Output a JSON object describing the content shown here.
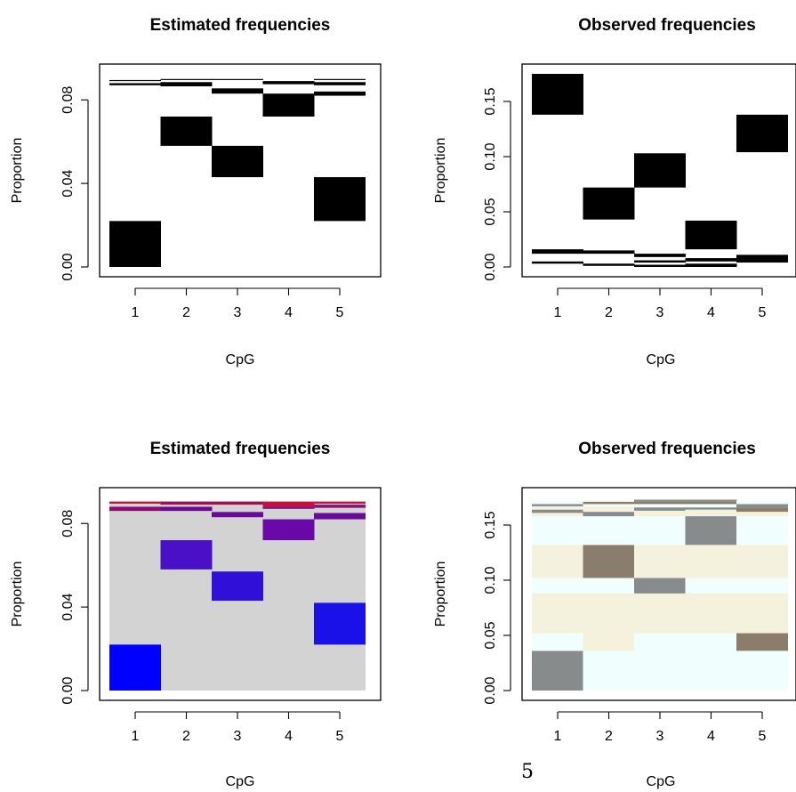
{
  "page_number": "5",
  "chart_data": [
    {
      "type": "heatmap",
      "title": "Estimated frequencies",
      "xlabel": "CpG",
      "ylabel": "Proportion",
      "categories": [
        "1",
        "2",
        "3",
        "4",
        "5"
      ],
      "yticks": [
        "0.00",
        "0.04",
        "0.08"
      ],
      "ylim": [
        0,
        0.09
      ],
      "color_mode": "black",
      "bars": [
        {
          "cpg": 1,
          "segments": [
            {
              "y0": 0.0,
              "y1": 0.022,
              "color": "#000000"
            },
            {
              "y0": 0.087,
              "y1": 0.088,
              "color": "#000000"
            },
            {
              "y0": 0.089,
              "y1": 0.0895,
              "color": "#000000"
            }
          ]
        },
        {
          "cpg": 2,
          "segments": [
            {
              "y0": 0.058,
              "y1": 0.072,
              "color": "#000000"
            },
            {
              "y0": 0.0865,
              "y1": 0.0885,
              "color": "#000000"
            },
            {
              "y0": 0.0895,
              "y1": 0.09,
              "color": "#000000"
            }
          ]
        },
        {
          "cpg": 3,
          "segments": [
            {
              "y0": 0.043,
              "y1": 0.058,
              "color": "#000000"
            },
            {
              "y0": 0.083,
              "y1": 0.0855,
              "color": "#000000"
            },
            {
              "y0": 0.0895,
              "y1": 0.09,
              "color": "#000000"
            }
          ]
        },
        {
          "cpg": 4,
          "segments": [
            {
              "y0": 0.072,
              "y1": 0.083,
              "color": "#000000"
            },
            {
              "y0": 0.0875,
              "y1": 0.089,
              "color": "#000000"
            }
          ]
        },
        {
          "cpg": 5,
          "segments": [
            {
              "y0": 0.022,
              "y1": 0.043,
              "color": "#000000"
            },
            {
              "y0": 0.082,
              "y1": 0.084,
              "color": "#000000"
            },
            {
              "y0": 0.087,
              "y1": 0.0885,
              "color": "#000000"
            },
            {
              "y0": 0.0895,
              "y1": 0.09,
              "color": "#000000"
            }
          ]
        }
      ]
    },
    {
      "type": "heatmap",
      "title": "Observed frequencies",
      "xlabel": "CpG",
      "ylabel": "Proportion",
      "categories": [
        "1",
        "2",
        "3",
        "4",
        "5"
      ],
      "yticks": [
        "0.00",
        "0.05",
        "0.10",
        "0.15"
      ],
      "ylim": [
        0,
        0.175
      ],
      "color_mode": "black",
      "bars": [
        {
          "cpg": 1,
          "segments": [
            {
              "y0": 0.003,
              "y1": 0.005,
              "color": "#000000"
            },
            {
              "y0": 0.012,
              "y1": 0.016,
              "color": "#000000"
            },
            {
              "y0": 0.138,
              "y1": 0.175,
              "color": "#000000"
            }
          ]
        },
        {
          "cpg": 2,
          "segments": [
            {
              "y0": 0.001,
              "y1": 0.003,
              "color": "#000000"
            },
            {
              "y0": 0.012,
              "y1": 0.015,
              "color": "#000000"
            },
            {
              "y0": 0.043,
              "y1": 0.072,
              "color": "#000000"
            }
          ]
        },
        {
          "cpg": 3,
          "segments": [
            {
              "y0": 0.0,
              "y1": 0.002,
              "color": "#000000"
            },
            {
              "y0": 0.004,
              "y1": 0.006,
              "color": "#000000"
            },
            {
              "y0": 0.009,
              "y1": 0.012,
              "color": "#000000"
            },
            {
              "y0": 0.072,
              "y1": 0.103,
              "color": "#000000"
            }
          ]
        },
        {
          "cpg": 4,
          "segments": [
            {
              "y0": 0.0,
              "y1": 0.003,
              "color": "#000000"
            },
            {
              "y0": 0.005,
              "y1": 0.008,
              "color": "#000000"
            },
            {
              "y0": 0.016,
              "y1": 0.042,
              "color": "#000000"
            }
          ]
        },
        {
          "cpg": 5,
          "segments": [
            {
              "y0": 0.004,
              "y1": 0.011,
              "color": "#000000"
            },
            {
              "y0": 0.104,
              "y1": 0.138,
              "color": "#000000"
            }
          ]
        }
      ]
    },
    {
      "type": "heatmap",
      "title": "Estimated frequencies",
      "xlabel": "CpG",
      "ylabel": "Proportion",
      "categories": [
        "1",
        "2",
        "3",
        "4",
        "5"
      ],
      "yticks": [
        "0.00",
        "0.04",
        "0.08"
      ],
      "ylim": [
        0,
        0.09
      ],
      "background": "#d3d3d3",
      "color_mode": "color",
      "bars": [
        {
          "cpg": 1,
          "segments": [
            {
              "y0": 0.0,
              "y1": 0.022,
              "color": "#0000ff"
            },
            {
              "y0": 0.086,
              "y1": 0.088,
              "color": "#8b0c70"
            },
            {
              "y0": 0.0895,
              "y1": 0.0905,
              "color": "#c0103c"
            }
          ]
        },
        {
          "cpg": 2,
          "segments": [
            {
              "y0": 0.058,
              "y1": 0.072,
              "color": "#4a10c8"
            },
            {
              "y0": 0.086,
              "y1": 0.088,
              "color": "#6a0a90"
            },
            {
              "y0": 0.089,
              "y1": 0.0905,
              "color": "#a01050"
            }
          ]
        },
        {
          "cpg": 3,
          "segments": [
            {
              "y0": 0.043,
              "y1": 0.057,
              "color": "#3010d8"
            },
            {
              "y0": 0.083,
              "y1": 0.0855,
              "color": "#6a0a98"
            },
            {
              "y0": 0.089,
              "y1": 0.0905,
              "color": "#a01050"
            }
          ]
        },
        {
          "cpg": 4,
          "segments": [
            {
              "y0": 0.072,
              "y1": 0.082,
              "color": "#6a08a8"
            },
            {
              "y0": 0.087,
              "y1": 0.088,
              "color": "#7a1088"
            },
            {
              "y0": 0.088,
              "y1": 0.0905,
              "color": "#c8103a"
            }
          ]
        },
        {
          "cpg": 5,
          "segments": [
            {
              "y0": 0.022,
              "y1": 0.042,
              "color": "#1a10e8"
            },
            {
              "y0": 0.082,
              "y1": 0.085,
              "color": "#6a0a98"
            },
            {
              "y0": 0.0875,
              "y1": 0.089,
              "color": "#8a1078"
            },
            {
              "y0": 0.0895,
              "y1": 0.0905,
              "color": "#c0103c"
            }
          ]
        }
      ]
    },
    {
      "type": "heatmap",
      "title": "Observed frequencies",
      "xlabel": "CpG",
      "ylabel": "Proportion",
      "categories": [
        "1",
        "2",
        "3",
        "4",
        "5"
      ],
      "yticks": [
        "0.00",
        "0.05",
        "0.10",
        "0.15"
      ],
      "ylim": [
        0,
        0.175
      ],
      "background": "#ffffff",
      "color_mode": "color",
      "bars": [
        {
          "cpg": 1,
          "segments": [
            {
              "y0": 0.0,
              "y1": 0.036,
              "color": "#878b8b"
            },
            {
              "y0": 0.036,
              "y1": 0.052,
              "color": "#f0fefe"
            },
            {
              "y0": 0.052,
              "y1": 0.088,
              "color": "#f4f2dc"
            },
            {
              "y0": 0.088,
              "y1": 0.102,
              "color": "#f0fefe"
            },
            {
              "y0": 0.102,
              "y1": 0.132,
              "color": "#f4f2dc"
            },
            {
              "y0": 0.132,
              "y1": 0.158,
              "color": "#f0fefe"
            },
            {
              "y0": 0.158,
              "y1": 0.161,
              "color": "#f4f2dc"
            },
            {
              "y0": 0.161,
              "y1": 0.164,
              "color": "#878b8b"
            },
            {
              "y0": 0.164,
              "y1": 0.167,
              "color": "#f4f2dc"
            },
            {
              "y0": 0.167,
              "y1": 0.169,
              "color": "#878b8b"
            },
            {
              "y0": 0.169,
              "y1": 0.172,
              "color": "#f0fefe"
            }
          ]
        },
        {
          "cpg": 2,
          "segments": [
            {
              "y0": 0.0,
              "y1": 0.036,
              "color": "#f0fefe"
            },
            {
              "y0": 0.036,
              "y1": 0.088,
              "color": "#f4f2dc"
            },
            {
              "y0": 0.088,
              "y1": 0.102,
              "color": "#f0fefe"
            },
            {
              "y0": 0.102,
              "y1": 0.132,
              "color": "#8b7d6b"
            },
            {
              "y0": 0.132,
              "y1": 0.158,
              "color": "#f0fefe"
            },
            {
              "y0": 0.158,
              "y1": 0.162,
              "color": "#878b8b"
            },
            {
              "y0": 0.162,
              "y1": 0.167,
              "color": "#f4f2dc"
            },
            {
              "y0": 0.167,
              "y1": 0.169,
              "color": "#f0fefe"
            },
            {
              "y0": 0.169,
              "y1": 0.171,
              "color": "#8b7d6b"
            },
            {
              "y0": 0.171,
              "y1": 0.172,
              "color": "#f4f2dc"
            }
          ]
        },
        {
          "cpg": 3,
          "segments": [
            {
              "y0": 0.0,
              "y1": 0.052,
              "color": "#f0fefe"
            },
            {
              "y0": 0.052,
              "y1": 0.088,
              "color": "#f4f2dc"
            },
            {
              "y0": 0.088,
              "y1": 0.102,
              "color": "#878b8b"
            },
            {
              "y0": 0.102,
              "y1": 0.132,
              "color": "#f4f2dc"
            },
            {
              "y0": 0.132,
              "y1": 0.158,
              "color": "#f0fefe"
            },
            {
              "y0": 0.158,
              "y1": 0.163,
              "color": "#f4f2dc"
            },
            {
              "y0": 0.163,
              "y1": 0.166,
              "color": "#878b8b"
            },
            {
              "y0": 0.166,
              "y1": 0.169,
              "color": "#f0fefe"
            },
            {
              "y0": 0.169,
              "y1": 0.171,
              "color": "#8b7d6b"
            },
            {
              "y0": 0.171,
              "y1": 0.173,
              "color": "#878b8b"
            }
          ]
        },
        {
          "cpg": 4,
          "segments": [
            {
              "y0": 0.0,
              "y1": 0.052,
              "color": "#f0fefe"
            },
            {
              "y0": 0.052,
              "y1": 0.088,
              "color": "#f4f2dc"
            },
            {
              "y0": 0.088,
              "y1": 0.102,
              "color": "#f0fefe"
            },
            {
              "y0": 0.102,
              "y1": 0.132,
              "color": "#f4f2dc"
            },
            {
              "y0": 0.132,
              "y1": 0.158,
              "color": "#878b8b"
            },
            {
              "y0": 0.158,
              "y1": 0.164,
              "color": "#f4f2dc"
            },
            {
              "y0": 0.164,
              "y1": 0.166,
              "color": "#878b8b"
            },
            {
              "y0": 0.166,
              "y1": 0.169,
              "color": "#f0fefe"
            },
            {
              "y0": 0.169,
              "y1": 0.171,
              "color": "#8b7d6b"
            },
            {
              "y0": 0.171,
              "y1": 0.173,
              "color": "#878b8b"
            }
          ]
        },
        {
          "cpg": 5,
          "segments": [
            {
              "y0": 0.0,
              "y1": 0.036,
              "color": "#f0fefe"
            },
            {
              "y0": 0.036,
              "y1": 0.052,
              "color": "#8b7d6b"
            },
            {
              "y0": 0.052,
              "y1": 0.088,
              "color": "#f4f2dc"
            },
            {
              "y0": 0.088,
              "y1": 0.102,
              "color": "#f0fefe"
            },
            {
              "y0": 0.102,
              "y1": 0.132,
              "color": "#f4f2dc"
            },
            {
              "y0": 0.132,
              "y1": 0.158,
              "color": "#f0fefe"
            },
            {
              "y0": 0.158,
              "y1": 0.162,
              "color": "#f4f2dc"
            },
            {
              "y0": 0.162,
              "y1": 0.166,
              "color": "#8b7d6b"
            },
            {
              "y0": 0.166,
              "y1": 0.169,
              "color": "#878b8b"
            },
            {
              "y0": 0.169,
              "y1": 0.172,
              "color": "#f0fefe"
            }
          ]
        }
      ]
    }
  ]
}
